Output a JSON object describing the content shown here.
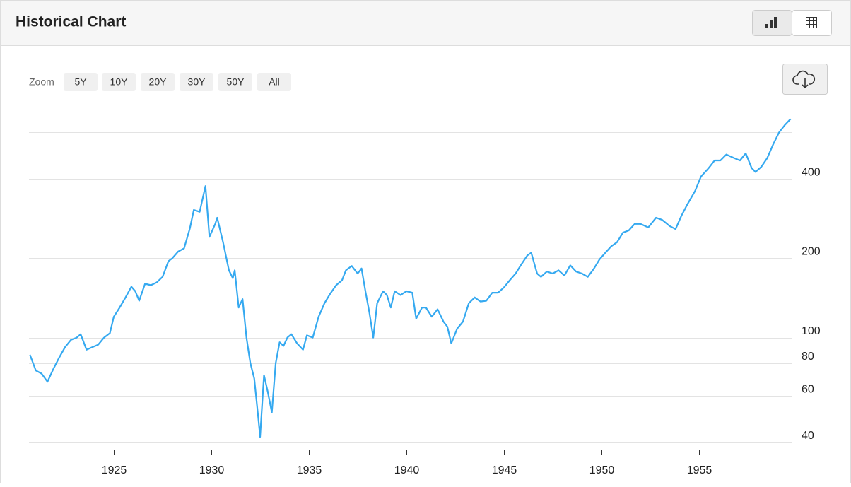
{
  "header": {
    "title": "Historical Chart"
  },
  "zoom": {
    "label": "Zoom",
    "options": [
      "5Y",
      "10Y",
      "20Y",
      "30Y",
      "50Y",
      "All"
    ]
  },
  "chart_data": {
    "type": "line",
    "log_scale": true,
    "grid": true,
    "color": "#35a9f0",
    "xlim": [
      1920.65,
      1959.75
    ],
    "xticks": [
      1925,
      1930,
      1935,
      1940,
      1945,
      1950,
      1955
    ],
    "ylim": [
      37.6,
      780
    ],
    "yticks": [
      40,
      60,
      80,
      100,
      200,
      400
    ],
    "ygrid": [
      40,
      60,
      80,
      100,
      200,
      400,
      600
    ],
    "x": [
      1920.7,
      1921.0,
      1921.3,
      1921.6,
      1921.9,
      1922.2,
      1922.5,
      1922.8,
      1923.1,
      1923.3,
      1923.6,
      1923.9,
      1924.2,
      1924.5,
      1924.8,
      1925.0,
      1925.3,
      1925.6,
      1925.9,
      1926.1,
      1926.3,
      1926.6,
      1926.9,
      1927.2,
      1927.5,
      1927.8,
      1928.0,
      1928.3,
      1928.6,
      1928.9,
      1929.1,
      1929.4,
      1929.7,
      1929.9,
      1930.2,
      1930.3,
      1930.6,
      1930.9,
      1931.1,
      1931.2,
      1931.4,
      1931.6,
      1931.8,
      1932.0,
      1932.2,
      1932.4,
      1932.5,
      1932.7,
      1932.9,
      1933.1,
      1933.3,
      1933.5,
      1933.7,
      1933.9,
      1934.1,
      1934.4,
      1934.7,
      1934.9,
      1935.2,
      1935.5,
      1935.8,
      1936.1,
      1936.4,
      1936.7,
      1936.9,
      1937.2,
      1937.5,
      1937.7,
      1937.9,
      1938.1,
      1938.3,
      1938.5,
      1938.8,
      1939.0,
      1939.2,
      1939.4,
      1939.7,
      1940.0,
      1940.3,
      1940.5,
      1940.8,
      1941.0,
      1941.3,
      1941.6,
      1941.9,
      1942.1,
      1942.3,
      1942.6,
      1942.9,
      1943.2,
      1943.5,
      1943.8,
      1944.1,
      1944.4,
      1944.7,
      1945.0,
      1945.3,
      1945.6,
      1945.9,
      1946.2,
      1946.4,
      1946.7,
      1946.9,
      1947.2,
      1947.5,
      1947.8,
      1948.1,
      1948.4,
      1948.7,
      1949.0,
      1949.3,
      1949.6,
      1949.9,
      1950.2,
      1950.5,
      1950.8,
      1951.1,
      1951.4,
      1951.7,
      1952.0,
      1952.4,
      1952.8,
      1953.1,
      1953.5,
      1953.8,
      1954.1,
      1954.4,
      1954.8,
      1955.1,
      1955.5,
      1955.8,
      1956.1,
      1956.4,
      1956.8,
      1957.1,
      1957.4,
      1957.7,
      1957.9,
      1958.2,
      1958.5,
      1958.8,
      1959.1,
      1959.4,
      1959.7
    ],
    "values": [
      86,
      75,
      73,
      68,
      76,
      84,
      92,
      98,
      100,
      103,
      90,
      92,
      94,
      100,
      104,
      120,
      130,
      142,
      156,
      150,
      138,
      160,
      158,
      162,
      170,
      195,
      200,
      212,
      218,
      260,
      305,
      300,
      376,
      241,
      270,
      285,
      230,
      180,
      168,
      180,
      130,
      140,
      100,
      80,
      70,
      50,
      42,
      72,
      62,
      52,
      80,
      96,
      93,
      100,
      103,
      95,
      90,
      102,
      100,
      120,
      135,
      147,
      158,
      165,
      180,
      187,
      175,
      183,
      150,
      125,
      100,
      135,
      150,
      145,
      130,
      150,
      145,
      150,
      148,
      118,
      130,
      130,
      120,
      128,
      115,
      110,
      95,
      108,
      115,
      135,
      142,
      137,
      138,
      148,
      148,
      155,
      165,
      175,
      190,
      205,
      210,
      175,
      170,
      178,
      175,
      180,
      172,
      188,
      178,
      175,
      170,
      182,
      198,
      210,
      222,
      230,
      250,
      255,
      270,
      270,
      262,
      285,
      280,
      265,
      258,
      290,
      320,
      360,
      408,
      440,
      470,
      470,
      495,
      480,
      470,
      500,
      440,
      425,
      445,
      480,
      540,
      600,
      640,
      676
    ]
  }
}
